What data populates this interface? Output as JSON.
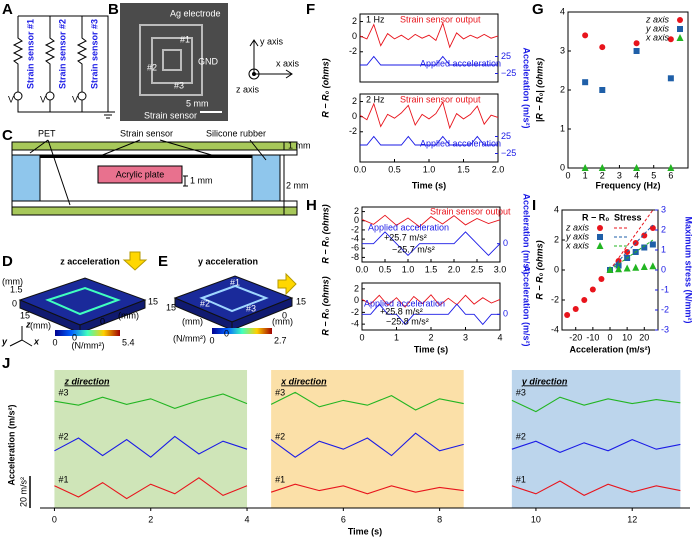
{
  "panel_labels": [
    "A",
    "B",
    "C",
    "D",
    "E",
    "F",
    "G",
    "H",
    "I",
    "J"
  ],
  "diagrams": {
    "A": {
      "sensors": [
        "Strain sensor #1",
        "Strain sensor #2",
        "Strain sensor #3"
      ],
      "sources": [
        "V",
        "V",
        "V"
      ]
    },
    "B": {
      "labels": [
        "Ag electrode",
        "#1",
        "#2",
        "#3",
        "GND",
        "Strain sensor",
        "5 mm"
      ],
      "axes": [
        "y axis",
        "x axis",
        "z axis"
      ]
    },
    "C": {
      "labels": [
        "PET",
        "Strain sensor",
        "Silicone rubber",
        "Acrylic plate",
        "1 mm",
        "1 mm",
        "2 mm"
      ]
    },
    "D": {
      "title": "z acceleration",
      "unit": "(N/mm²)",
      "colorbar": [
        "0",
        "5.4"
      ],
      "axis_ticks": [
        "1.5",
        "0",
        "15",
        "0",
        "15",
        "0"
      ],
      "axis_units": [
        "(mm)",
        "(mm)",
        "(mm)"
      ],
      "axes": [
        "z",
        "y",
        "x"
      ]
    },
    "E": {
      "title": "y acceleration",
      "unit": "(N/mm²)",
      "colorbar": [
        "0",
        "2.7"
      ],
      "labels": [
        "#1",
        "#2",
        "#3"
      ],
      "axis_ticks": [
        "15",
        "0",
        "15",
        "0"
      ],
      "axis_units": [
        "(mm)",
        "(mm)"
      ]
    }
  },
  "chart_data": [
    {
      "type": "line",
      "annotation": "1 Hz",
      "x": [
        0,
        0.1,
        0.2,
        0.3,
        0.4,
        0.5,
        0.6,
        0.7,
        0.8,
        0.9,
        1.0,
        1.1,
        1.2,
        1.3,
        1.4,
        1.5,
        1.6,
        1.7,
        1.8,
        1.9,
        2.0
      ],
      "xlim": [
        0,
        2
      ],
      "ylim": [
        -6,
        3
      ],
      "yticks": [
        -2,
        0,
        2
      ],
      "y2lim": [
        -50,
        150
      ],
      "y2ticks": [
        {
          "value": -25,
          "label": "−25"
        },
        25
      ],
      "series": [
        {
          "name": "Strain sensor output",
          "color": "#e8141c",
          "values": [
            0.1,
            -0.3,
            1.6,
            -1.2,
            0.4,
            -0.3,
            0.2,
            -0.4,
            0.3,
            -0.2,
            0.2,
            -0.5,
            1.8,
            -1.4,
            0.5,
            -0.3,
            0.2,
            -0.2,
            0.3,
            -0.2,
            0.1
          ]
        },
        {
          "name": "Applied acceleration",
          "color": "#1a1ae6",
          "axis": "y2",
          "values": [
            0,
            0,
            25,
            0,
            0,
            0,
            0,
            0,
            0,
            0,
            0,
            0,
            25,
            0,
            0,
            0,
            0,
            0,
            0,
            0,
            0
          ]
        }
      ]
    },
    {
      "type": "line",
      "annotation": "2 Hz",
      "x": [
        0,
        0.1,
        0.2,
        0.3,
        0.4,
        0.5,
        0.6,
        0.7,
        0.8,
        0.9,
        1.0,
        1.1,
        1.2,
        1.3,
        1.4,
        1.5,
        1.6,
        1.7,
        1.8,
        1.9,
        2.0
      ],
      "x_label": "Time (s)",
      "y_label": "R − R₀ (ohms)",
      "y2_label": "Acceleration (m/s²)",
      "xlim": [
        0,
        2
      ],
      "xticks": [
        {
          "value": 0,
          "label": "0.0"
        },
        0.5,
        {
          "value": 1,
          "label": "1.0"
        },
        1.5,
        {
          "value": 2,
          "label": "2.0"
        }
      ],
      "ylim": [
        -6,
        3
      ],
      "yticks": [
        -2,
        0,
        2
      ],
      "y2lim": [
        -50,
        150
      ],
      "y2ticks": [
        {
          "value": -25,
          "label": "−25"
        },
        25
      ],
      "series": [
        {
          "name": "Strain sensor output",
          "color": "#e8141c",
          "values": [
            0.2,
            -0.4,
            1.7,
            -1.3,
            0.3,
            -0.2,
            0.5,
            1.5,
            -1.1,
            0.3,
            -0.3,
            0.4,
            1.9,
            -1.5,
            0.4,
            -0.3,
            0.3,
            1.4,
            -1.0,
            0.2,
            -0.1
          ]
        },
        {
          "name": "Applied acceleration",
          "color": "#1a1ae6",
          "axis": "y2",
          "values": [
            0,
            0,
            25,
            0,
            0,
            0,
            0,
            25,
            0,
            0,
            0,
            0,
            25,
            0,
            0,
            0,
            0,
            25,
            0,
            0,
            0
          ]
        }
      ]
    },
    {
      "type": "scatter",
      "x": [
        1,
        2,
        4,
        6
      ],
      "x_label": "Frequency (Hz)",
      "y_label": "|R − R₀| (ohms)",
      "xlim": [
        0,
        7
      ],
      "xticks": [
        0,
        1,
        2,
        3,
        4,
        5,
        6
      ],
      "ylim": [
        0,
        4
      ],
      "yticks": [
        0,
        1,
        2,
        3,
        4
      ],
      "legend": "upper right",
      "series": [
        {
          "name": "z axis",
          "color": "#e8141c",
          "marker": "circle",
          "values": [
            3.4,
            3.1,
            3.2,
            3.3
          ]
        },
        {
          "name": "y axis",
          "color": "#1f5fa8",
          "marker": "square",
          "values": [
            2.2,
            2.0,
            3.0,
            2.3
          ]
        },
        {
          "name": "x axis",
          "color": "#22b522",
          "marker": "triangle",
          "values": [
            0,
            0,
            0,
            0
          ]
        }
      ]
    },
    {
      "type": "line",
      "x": [
        0,
        0.25,
        0.5,
        0.75,
        1.0,
        1.25,
        1.5,
        1.75,
        2.0,
        2.25,
        2.5,
        2.75,
        3.0
      ],
      "y_label": "R − R₀ (ohms)",
      "y2_label": "Acceleration (m/s²)",
      "annotations": [
        "+25.7 m/s²",
        "−25.7 m/s²"
      ],
      "xlim": [
        0,
        3
      ],
      "xticks": [
        {
          "value": 0,
          "label": "0.0"
        },
        0.5,
        {
          "value": 1,
          "label": "1.0"
        },
        1.5,
        {
          "value": 2,
          "label": "2.0"
        },
        2.5,
        {
          "value": 3,
          "label": "3.0"
        }
      ],
      "ylim": [
        -9,
        3
      ],
      "yticks": [
        -8,
        -6,
        -4,
        -2,
        0,
        2
      ],
      "y2lim": [
        -40,
        80
      ],
      "y2ticks": [
        0
      ],
      "series": [
        {
          "name": "Strain sensor output",
          "color": "#e8141c",
          "values": [
            0.3,
            -0.8,
            1.2,
            -1.0,
            0.6,
            -1.3,
            0.9,
            -0.7,
            1.1,
            -0.9,
            0.5,
            -0.6,
            0.2
          ]
        },
        {
          "name": "Applied acceleration",
          "color": "#1a1ae6",
          "axis": "y2",
          "values": [
            0,
            0,
            25.7,
            0,
            -25.7,
            0,
            0,
            0,
            0,
            25.7,
            0,
            -25.7,
            0
          ]
        }
      ]
    },
    {
      "type": "line",
      "x": [
        0,
        0.25,
        0.5,
        0.75,
        1,
        1.25,
        1.5,
        1.75,
        2,
        2.25,
        2.5,
        2.75,
        3,
        3.25,
        3.5,
        3.75,
        4
      ],
      "x_label": "Time (s)",
      "y_label": "R − R₀ (ohms)",
      "y2_label": "Acceleration (m/s²)",
      "annotations": [
        "+25.8 m/s²",
        "−25.8 m/s²"
      ],
      "xlim": [
        0,
        4
      ],
      "xticks": [
        0,
        1,
        2,
        3,
        4
      ],
      "ylim": [
        -5,
        3
      ],
      "yticks": [
        -4,
        -2,
        0,
        2
      ],
      "y2lim": [
        -40,
        80
      ],
      "y2ticks": [
        0
      ],
      "series": [
        {
          "name": "Strain sensor output",
          "color": "#e8141c",
          "values": [
            0.2,
            -0.6,
            0.9,
            -0.8,
            0.5,
            -1.1,
            0.7,
            -0.5,
            1.0,
            -0.8,
            0.4,
            -0.7,
            0.9,
            -0.6,
            0.5,
            -0.4,
            0.2
          ]
        },
        {
          "name": "Applied acceleration",
          "color": "#1a1ae6",
          "axis": "y2",
          "values": [
            0,
            0,
            25.8,
            0,
            0,
            -25.8,
            0,
            0,
            0,
            0,
            0,
            25.8,
            0,
            0,
            -25.8,
            0,
            0
          ]
        }
      ]
    },
    {
      "type": "scatter",
      "x": [
        -25,
        -20,
        -15,
        -10,
        -5,
        0,
        5,
        10,
        15,
        20,
        25
      ],
      "x_label": "Acceleration (m/s²)",
      "y_label": "R − R₀ (ohms)",
      "y2_label": "Maximum stress (N/mm²)",
      "legend_headers": [
        "R − R₀",
        "Stress"
      ],
      "xlim": [
        -28,
        28
      ],
      "xticks": [
        -20,
        -10,
        0,
        10,
        20
      ],
      "ylim": [
        -4,
        4
      ],
      "yticks": [
        -4,
        -2,
        0,
        2,
        4
      ],
      "y2lim": [
        -3,
        3
      ],
      "y2ticks": [
        -3,
        -2,
        -1,
        0,
        1,
        2,
        3
      ],
      "legend": "upper left",
      "series": [
        {
          "name": "z axis",
          "color": "#e8141c",
          "marker": "circle",
          "values": [
            -3,
            -2.6,
            -2,
            -1.3,
            -0.6,
            0,
            0.6,
            1.2,
            1.8,
            2.3,
            2.8
          ],
          "stress": [
            null,
            null,
            null,
            null,
            null,
            0,
            0.6,
            1.2,
            1.8,
            2.4,
            3.0
          ]
        },
        {
          "name": "y axis",
          "color": "#1f5fa8",
          "marker": "square",
          "values": [
            null,
            null,
            null,
            null,
            null,
            0,
            0.3,
            0.8,
            1.2,
            1.5,
            1.7
          ],
          "stress": [
            null,
            null,
            null,
            null,
            null,
            0,
            0.45,
            0.9,
            1.35,
            1.8,
            2.25
          ]
        },
        {
          "name": "x axis",
          "color": "#22b522",
          "marker": "triangle",
          "values": [
            null,
            null,
            null,
            null,
            null,
            0,
            0.05,
            0.1,
            0.15,
            0.2,
            0.25
          ],
          "stress": [
            null,
            null,
            null,
            null,
            null,
            0,
            0.3,
            0.6,
            0.9,
            1.2,
            1.5
          ]
        }
      ]
    },
    {
      "type": "traces",
      "x_label": "Time (s)",
      "y_label": "Acceleration (m/s²)",
      "scale_bar": {
        "value": 20,
        "label": "20 m/s²"
      },
      "x": [
        0,
        0.5,
        1,
        1.5,
        2,
        2.5,
        3,
        3.5,
        4,
        4.25,
        4.5,
        5,
        5.5,
        6,
        6.5,
        7,
        7.5,
        8,
        8.5,
        9,
        9.5,
        10,
        10.5,
        11,
        11.5,
        12,
        12.5,
        13
      ],
      "xlim": [
        -0.3,
        13.2
      ],
      "xticks": [
        0,
        2,
        4,
        6,
        8,
        10,
        12
      ],
      "regions": [
        {
          "label": "z direction",
          "xlim": [
            0,
            4
          ],
          "color": "#cfe5b8"
        },
        {
          "label": "x direction",
          "xlim": [
            4.5,
            8.5
          ],
          "color": "#fbe0a8"
        },
        {
          "label": "y direction",
          "xlim": [
            9.5,
            13
          ],
          "color": "#bcd5ec"
        }
      ],
      "series": [
        {
          "name": "#3",
          "color": "#22b522",
          "values": [
            0.5,
            -2,
            3,
            -1.5,
            2,
            -4,
            1,
            5,
            -1,
            null,
            -1.5,
            6,
            -3,
            1,
            -2,
            4,
            -5,
            2,
            -1,
            null,
            1,
            -6,
            3,
            -2,
            2,
            -1,
            1.5,
            -0.5
          ]
        },
        {
          "name": "#2",
          "color": "#1a1ae6",
          "values": [
            -3,
            5,
            -6,
            4,
            -7,
            6,
            -5,
            3,
            -2,
            null,
            4,
            -7,
            3,
            -2,
            5,
            -6,
            8,
            -3,
            1,
            null,
            -2,
            3,
            -4,
            2,
            -3,
            4,
            -2,
            1
          ]
        },
        {
          "name": "#1",
          "color": "#e8141c",
          "values": [
            2,
            -5,
            4,
            -6,
            3,
            -3,
            7,
            -4,
            2,
            null,
            -2,
            3,
            -1,
            2,
            -3,
            2,
            -2,
            1,
            -1,
            null,
            2,
            -3,
            5,
            -4,
            3,
            -2,
            2,
            -1
          ]
        }
      ]
    }
  ]
}
